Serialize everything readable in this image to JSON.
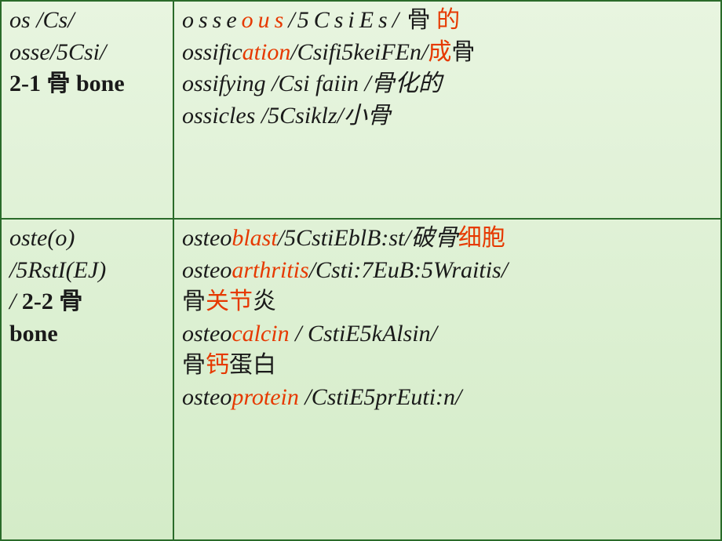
{
  "cell_1_left": {
    "line1_a": "os",
    "line1_b": " /Cs/",
    "line2": "osse/5Csi/",
    "line3_a": " 2-1 ",
    "line3_b": "骨",
    "line3_c": " bone"
  },
  "cell_1_right": {
    "l1_a": "osse",
    "l1_b": "ous",
    "l1_c": "/",
    "l1_d": "5CsiEs",
    "l1_e": "/",
    "l1_f": "骨",
    "l1_g": "的",
    "l2_a": "ossific",
    "l2_b": "ation",
    "l2_c": "/Csifi5keiFEn/",
    "l2_d": "成",
    "l2_e": "骨",
    "l3_a": "ossifying /Csi   faiin   /骨化的",
    "l4_a": "ossicles /5Csiklz/小骨"
  },
  "cell_2_left": {
    "line1": "oste(o)",
    "line2": "/5RstI(EJ)",
    "line3_a": "/  ",
    "line3_b": "2-2  ",
    "line3_c": "骨",
    "line4": "bone"
  },
  "cell_2_right": {
    "l1_a": "osteo",
    "l1_b": "blast",
    "l1_c": "/5CstiEblB:st/破骨",
    "l1_d": "细胞",
    "l2_a": "osteo",
    "l2_b": "arthritis",
    "l2_c": "/Csti:7EuB:5Wraitis/",
    "l3_a": "骨",
    "l3_b": "关节",
    "l3_c": "炎",
    "l4_a": "osteo",
    "l4_b": "calcin",
    "l4_c": " / CstiE5kAlsin/",
    "l5_a": "骨",
    "l5_b": "钙",
    "l5_c": "蛋白",
    "l6_a": "osteo",
    "l6_b": "protein",
    "l6_c": " /CstiE5prEuti:n/"
  }
}
